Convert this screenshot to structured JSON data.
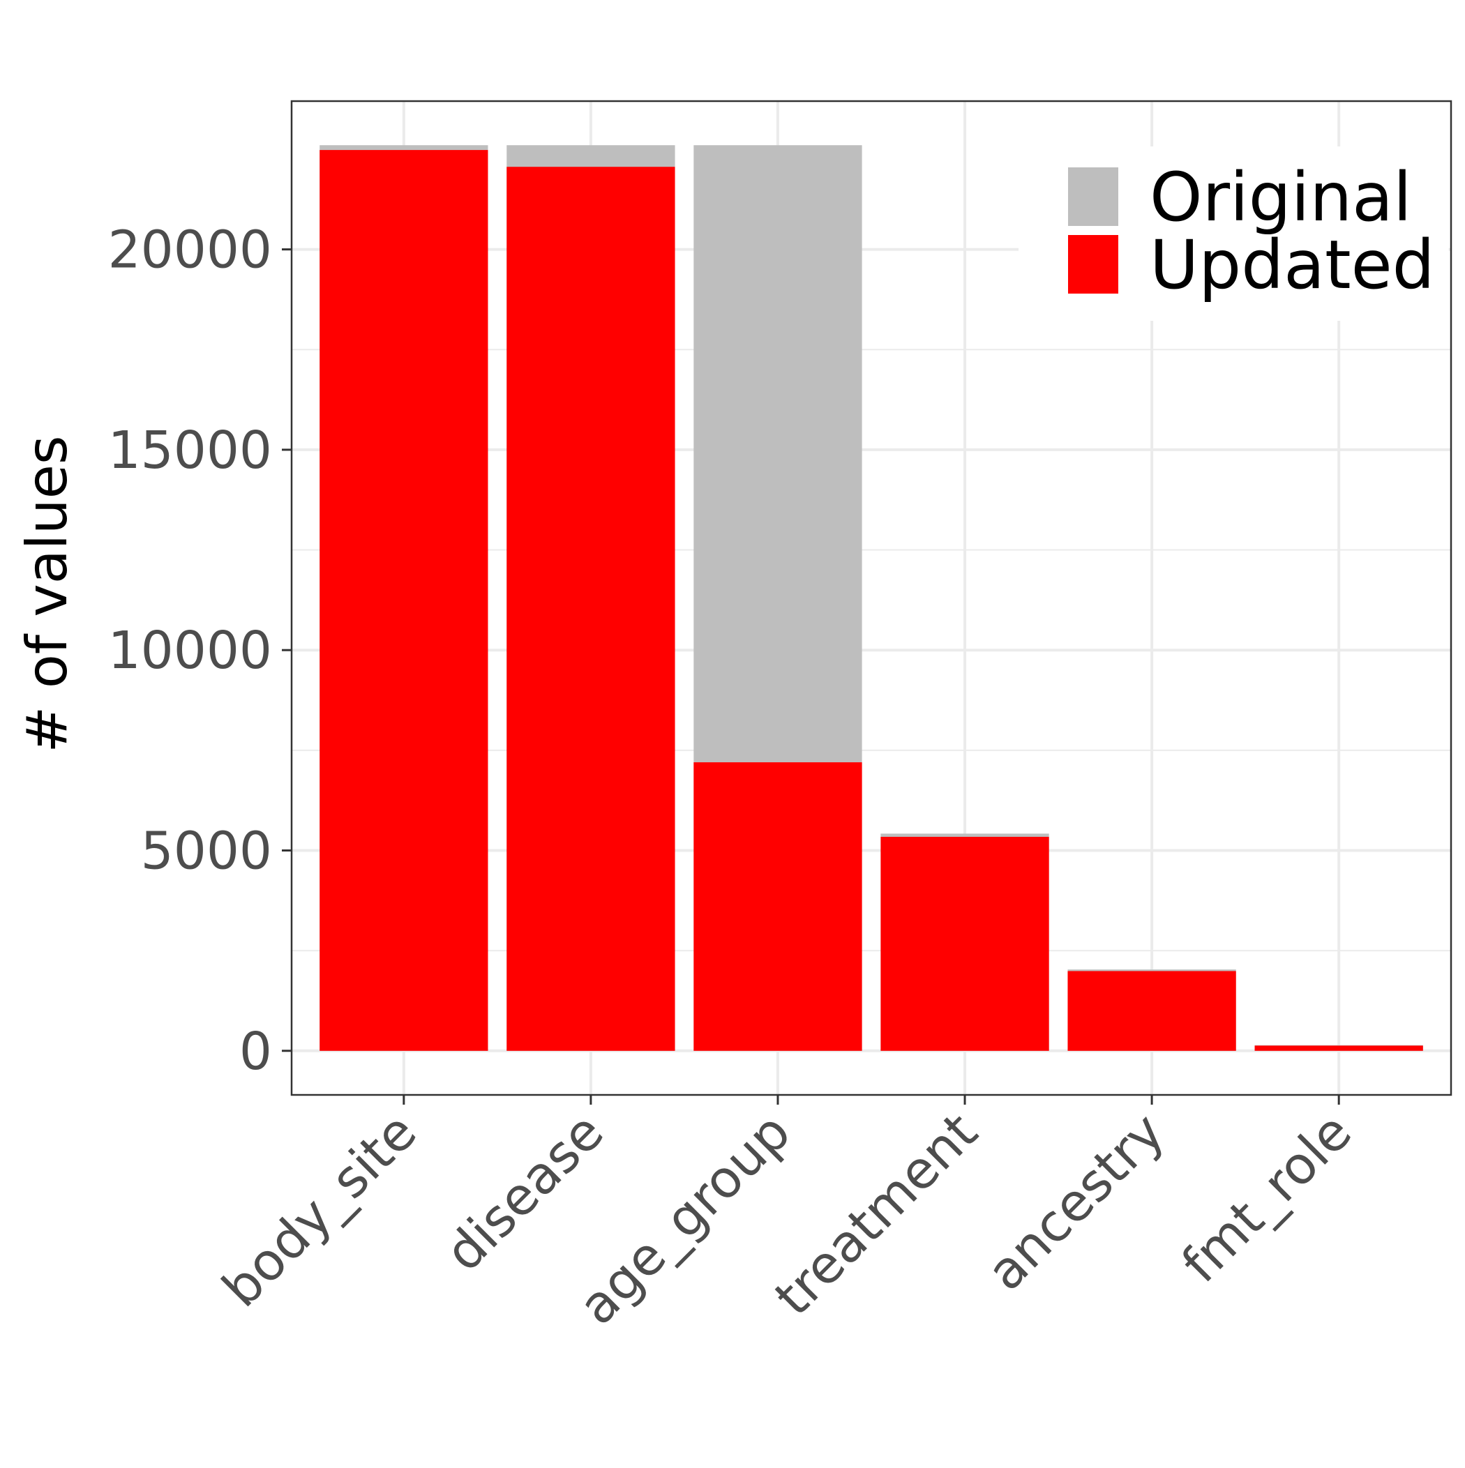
{
  "chart_data": {
    "type": "bar",
    "stacked": "overlay",
    "title": "",
    "xlabel": "",
    "ylabel": "# of values",
    "ylim": [
      -1100,
      23700
    ],
    "yticks": [
      0,
      5000,
      10000,
      15000,
      20000
    ],
    "ytick_labels": [
      "0",
      "5000",
      "10000",
      "15000",
      "20000"
    ],
    "categories": [
      "body_site",
      "disease",
      "age_group",
      "treatment",
      "ancestry",
      "fmt_role"
    ],
    "series": [
      {
        "name": "Original",
        "color": "#bebebe",
        "values": [
          22600,
          22600,
          22600,
          5420,
          2030,
          140
        ]
      },
      {
        "name": "Updated",
        "color": "#ff0000",
        "values": [
          22480,
          22060,
          7200,
          5340,
          1990,
          130
        ]
      }
    ],
    "legend": {
      "position": "top-right",
      "entries": [
        "Original",
        "Updated"
      ]
    },
    "grid": true,
    "colors": {
      "grid": "#ebebeb",
      "panel_border": "#333333",
      "tick_text": "#4d4d4d"
    }
  }
}
